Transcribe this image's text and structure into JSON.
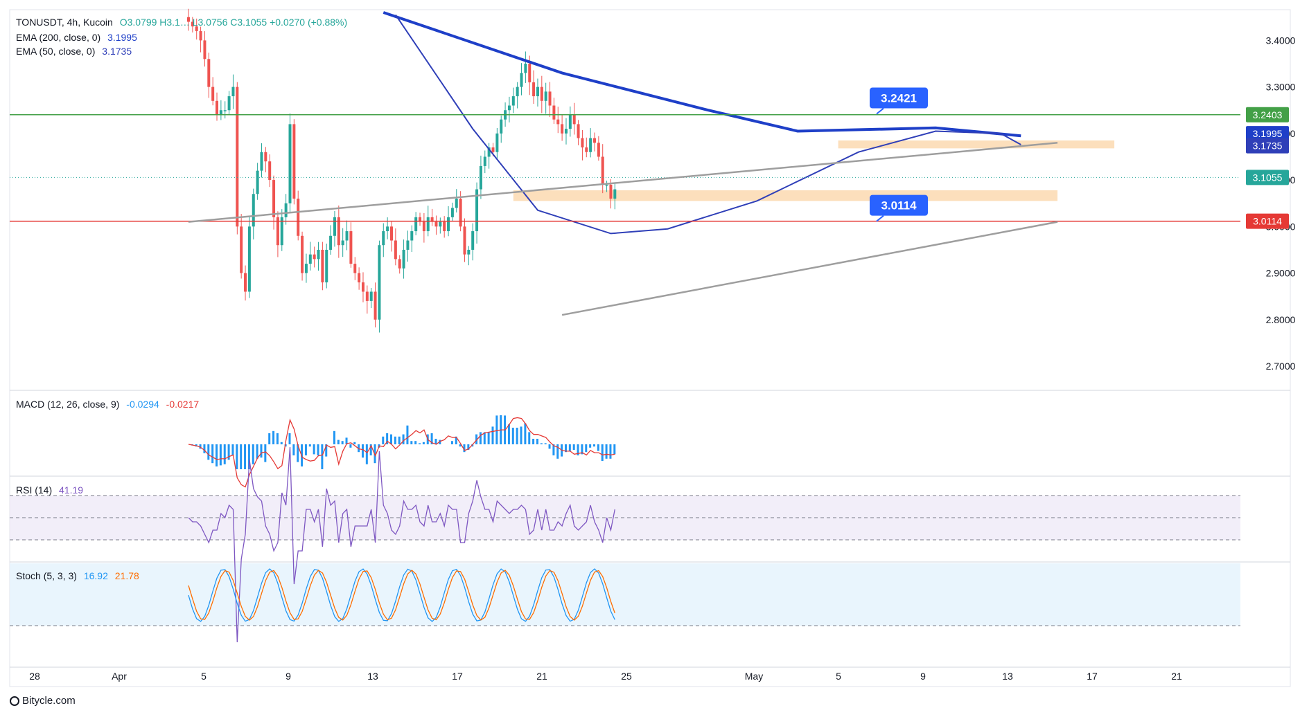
{
  "header": {
    "symbol": "TONUSDT, 4h, Kucoin",
    "ohlc": "O3.0799 H3.1… L3.0756 C3.1055 +0.0270 (+0.88%)",
    "ema200": {
      "label": "EMA (200, close, 0)",
      "value": "3.1995"
    },
    "ema50": {
      "label": "EMA (50, close, 0)",
      "value": "3.1735"
    }
  },
  "panes": {
    "macd": {
      "label": "MACD (12, 26, close, 9)",
      "v1": "-0.0294",
      "v2": "-0.0217"
    },
    "rsi": {
      "label": "RSI (14)",
      "value": "41.19"
    },
    "stoch": {
      "label": "Stoch (5, 3, 3)",
      "k": "16.92",
      "d": "21.78"
    }
  },
  "footer": {
    "brand": "Bitycle.com"
  },
  "colors": {
    "up": "#26a69a",
    "down": "#ef5350",
    "ema200": "#1e3fc8",
    "ema50": "#2f3fb8",
    "support": "#e53935",
    "resistance": "#43a047",
    "callout": "#2962ff",
    "macd_hist": "#2196f3",
    "macd_signal": "#e53935",
    "rsi": "#7e57c2",
    "stoch_k": "#2196f3",
    "stoch_d": "#ff6d00",
    "zone": "#fbd9b0"
  },
  "chart_data": {
    "type": "candlestick",
    "x_ticks": [
      "28",
      "Apr",
      "5",
      "9",
      "13",
      "17",
      "21",
      "25",
      "May",
      "5",
      "9",
      "13",
      "17",
      "21"
    ],
    "price_ticks": [
      "3.4000",
      "3.3000",
      "3.2000",
      "3.1000",
      "3.0000",
      "2.9000",
      "2.8000",
      "2.7000"
    ],
    "price_tick_values": [
      3.4,
      3.3,
      3.2,
      3.1,
      3.0,
      2.9,
      2.8,
      2.7
    ],
    "price_axis_labels": [
      {
        "text": "3.2403",
        "value": 3.2403,
        "color": "#43a047"
      },
      {
        "text": "3.1995",
        "value": 3.1995,
        "color": "#1e3fc8"
      },
      {
        "text": "3.1735",
        "value": 3.1735,
        "color": "#2f3fb8"
      },
      {
        "text": "3.1055",
        "value": 3.1055,
        "color": "#26a69a"
      },
      {
        "text": "3.0114",
        "value": 3.0114,
        "color": "#e53935"
      }
    ],
    "callouts": [
      {
        "text": "3.2421",
        "value": 3.2421,
        "bar": 214
      },
      {
        "text": "3.0114",
        "value": 3.0114,
        "bar": 214
      }
    ],
    "resistance_level": 3.2403,
    "support_level": 3.0114,
    "last_price": 3.1055,
    "trendlines": [
      {
        "from": [
          0,
          3.01
        ],
        "to": [
          214,
          3.18
        ],
        "color": "#9e9e9e"
      },
      {
        "from": [
          92,
          2.81
        ],
        "to": [
          214,
          3.01
        ],
        "color": "#9e9e9e"
      }
    ],
    "zones": [
      {
        "bar_from": 80,
        "bar_to": 214,
        "low": 3.055,
        "high": 3.078
      },
      {
        "bar_from": 160,
        "bar_to": 228,
        "low": 3.168,
        "high": 3.185
      }
    ],
    "ema200_points": [
      [
        48,
        3.46
      ],
      [
        92,
        3.33
      ],
      [
        128,
        3.25
      ],
      [
        150,
        3.205
      ],
      [
        184,
        3.212
      ],
      [
        205,
        3.195
      ]
    ],
    "ema50_points": [
      [
        51,
        3.455
      ],
      [
        70,
        3.21
      ],
      [
        86,
        3.035
      ],
      [
        104,
        2.985
      ],
      [
        118,
        2.995
      ],
      [
        140,
        3.055
      ],
      [
        165,
        3.16
      ],
      [
        184,
        3.205
      ],
      [
        200,
        3.2
      ],
      [
        205,
        3.176
      ]
    ],
    "candle_closes": [
      3.44,
      3.43,
      3.42,
      3.4,
      3.36,
      3.3,
      3.27,
      3.24,
      3.25,
      3.25,
      3.28,
      3.3,
      3.0,
      2.9,
      2.86,
      3.0,
      3.07,
      3.12,
      3.16,
      3.14,
      3.1,
      3.02,
      2.96,
      3.02,
      3.05,
      3.22,
      3.06,
      2.98,
      2.9,
      2.92,
      2.94,
      2.93,
      2.95,
      2.88,
      2.95,
      2.98,
      3.02,
      2.96,
      2.97,
      2.99,
      2.92,
      2.9,
      2.88,
      2.86,
      2.84,
      2.86,
      2.8,
      2.96,
      2.99,
      3.0,
      2.97,
      2.93,
      2.91,
      2.95,
      2.97,
      2.99,
      3.02,
      3.01,
      2.99,
      3.02,
      3.01,
      3.0,
      3.01,
      2.99,
      3.02,
      3.04,
      3.06,
      3.0,
      2.94,
      2.95,
      2.99,
      3.08,
      3.13,
      3.15,
      3.17,
      3.16,
      3.2,
      3.23,
      3.25,
      3.26,
      3.28,
      3.3,
      3.33,
      3.35,
      3.31,
      3.28,
      3.3,
      3.27,
      3.29,
      3.26,
      3.23,
      3.22,
      3.2,
      3.21,
      3.24,
      3.22,
      3.19,
      3.17,
      3.16,
      3.19,
      3.18,
      3.15,
      3.09,
      3.09,
      3.06,
      3.08
    ]
  }
}
